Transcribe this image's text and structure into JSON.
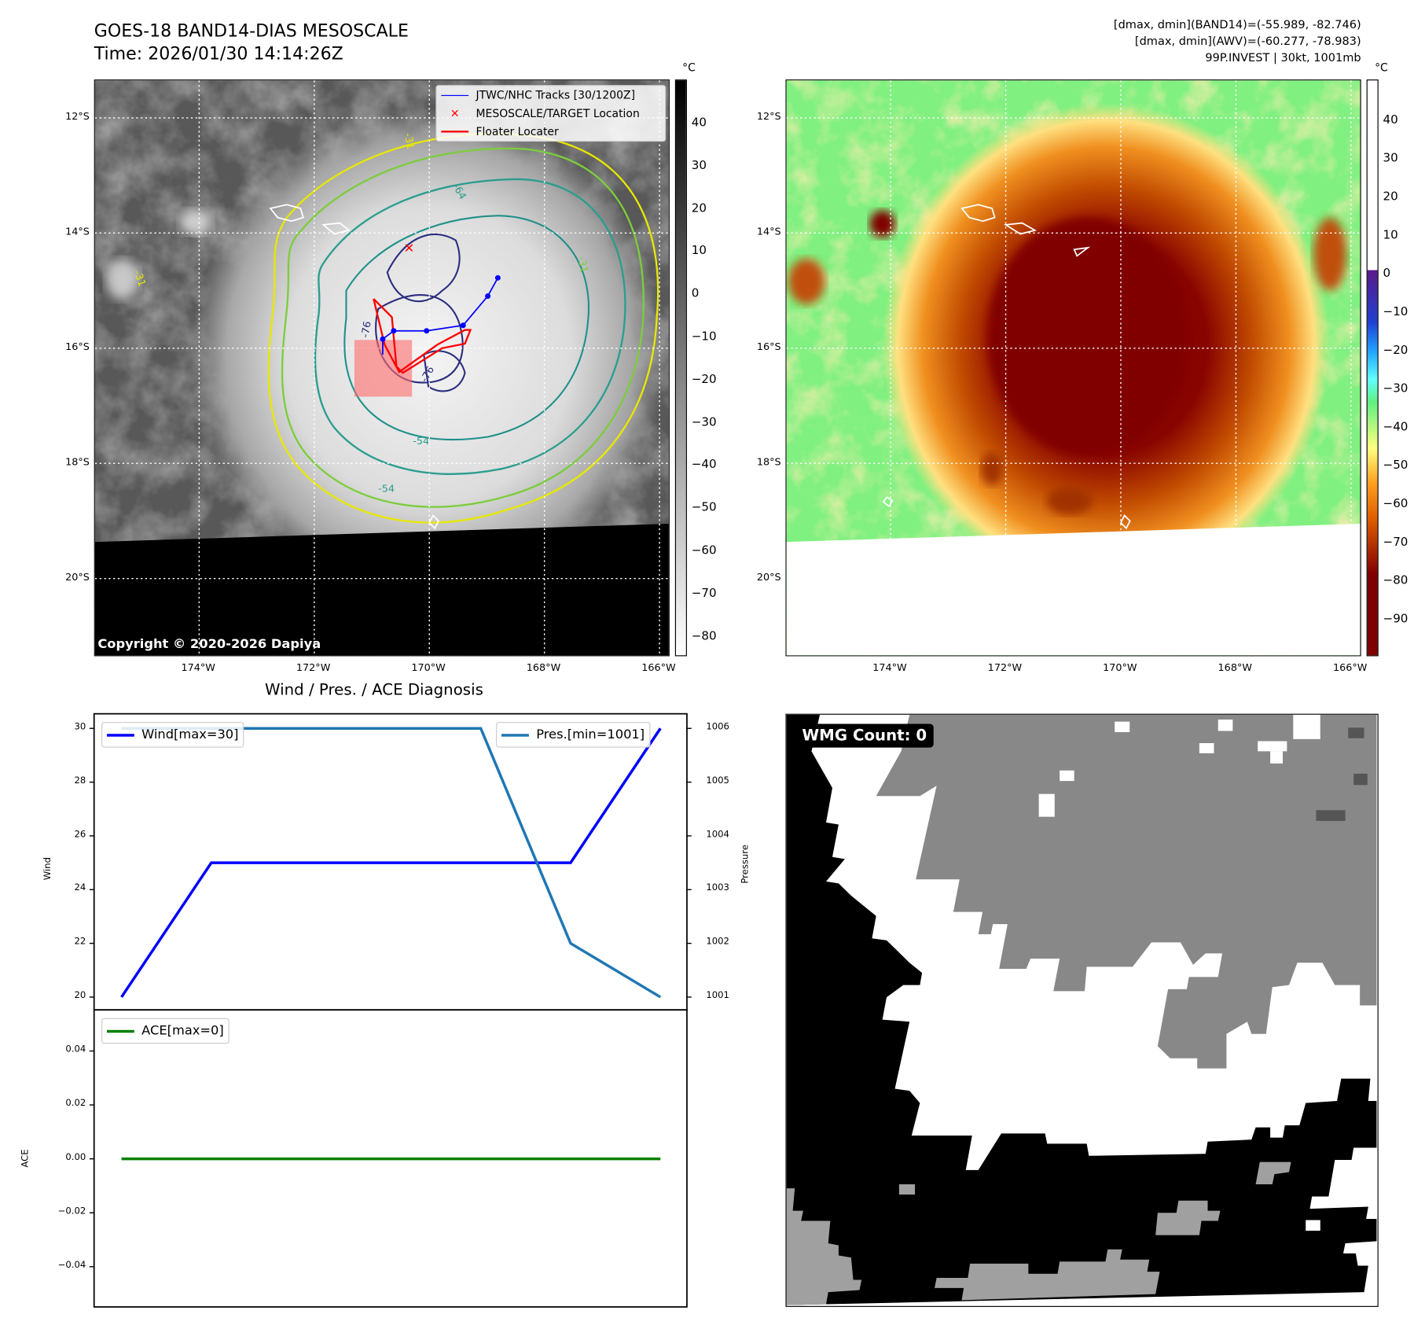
{
  "header": {
    "title_line1": "GOES-18 BAND14-DIAS MESOSCALE",
    "title_line2": "Time: 2026/01/30 14:14:26Z",
    "info_line1": "[dmax, dmin](BAND14)=(-55.989, -82.746)",
    "info_line2": "[dmax, dmin](AWV)=(-60.277, -78.983)",
    "info_line3": "99P.INVEST | 30kt, 1001mb"
  },
  "map_left": {
    "legend": [
      "JTWC/NHC Tracks [30/1200Z]",
      "MESOSCALE/TARGET Location",
      "Floater Locater"
    ],
    "copyright": "Copyright © 2020-2026 Dapiya",
    "lat_labels": [
      "12°S",
      "14°S",
      "16°S",
      "18°S",
      "20°S"
    ],
    "lon_labels": [
      "174°W",
      "172°W",
      "170°W",
      "168°W",
      "166°W"
    ],
    "contour_labels": [
      "-64",
      "-31",
      "-31",
      "-54",
      "-76",
      "-76",
      "-31",
      "-54"
    ],
    "colorbar_unit": "°C",
    "colorbar_ticks": [
      "40",
      "30",
      "20",
      "10",
      "0",
      "−10",
      "−20",
      "−30",
      "−40",
      "−50",
      "−60",
      "−70",
      "−80"
    ]
  },
  "map_right": {
    "lat_labels": [
      "12°S",
      "14°S",
      "16°S",
      "18°S",
      "20°S"
    ],
    "lon_labels": [
      "174°W",
      "172°W",
      "170°W",
      "168°W",
      "166°W"
    ],
    "colorbar_unit": "°C",
    "colorbar_ticks": [
      "40",
      "30",
      "20",
      "10",
      "0",
      "−10",
      "−20",
      "−30",
      "−40",
      "−50",
      "−60",
      "−70",
      "−80",
      "−90"
    ]
  },
  "wmg": {
    "label": "WMG Count: 0"
  },
  "chart_data": {
    "type": "line",
    "title": "Wind / Pres. / ACE Diagnosis",
    "x": [
      0,
      1,
      2,
      3,
      4,
      5,
      6
    ],
    "series": [
      {
        "name": "Wind[max=30]",
        "axis": "Wind",
        "color": "#0000ff",
        "values": [
          20,
          25,
          25,
          25,
          25,
          25,
          30
        ]
      },
      {
        "name": "Pres.[min=1001]",
        "axis": "Pressure",
        "color": "#1f77b4",
        "values": [
          1006,
          1006,
          1006,
          1006,
          1006,
          1002,
          1001
        ]
      },
      {
        "name": "ACE[max=0]",
        "axis": "ACE",
        "color": "#008000",
        "values": [
          0,
          0,
          0,
          0,
          0,
          0,
          0
        ]
      }
    ],
    "wind_axis": {
      "label": "Wind",
      "ylim": [
        20,
        30
      ],
      "ticks": [
        "30",
        "28",
        "26",
        "24",
        "22",
        "20"
      ]
    },
    "pressure_axis": {
      "label": "Pressure",
      "ylim": [
        1001,
        1006
      ],
      "ticks": [
        "1006",
        "1005",
        "1004",
        "1003",
        "1002",
        "1001"
      ]
    },
    "ace_axis": {
      "label": "ACE",
      "ylim": [
        -0.04,
        0.04
      ],
      "ticks": [
        "0.04",
        "0.02",
        "0.00",
        "−0.02",
        "−0.04"
      ]
    }
  }
}
